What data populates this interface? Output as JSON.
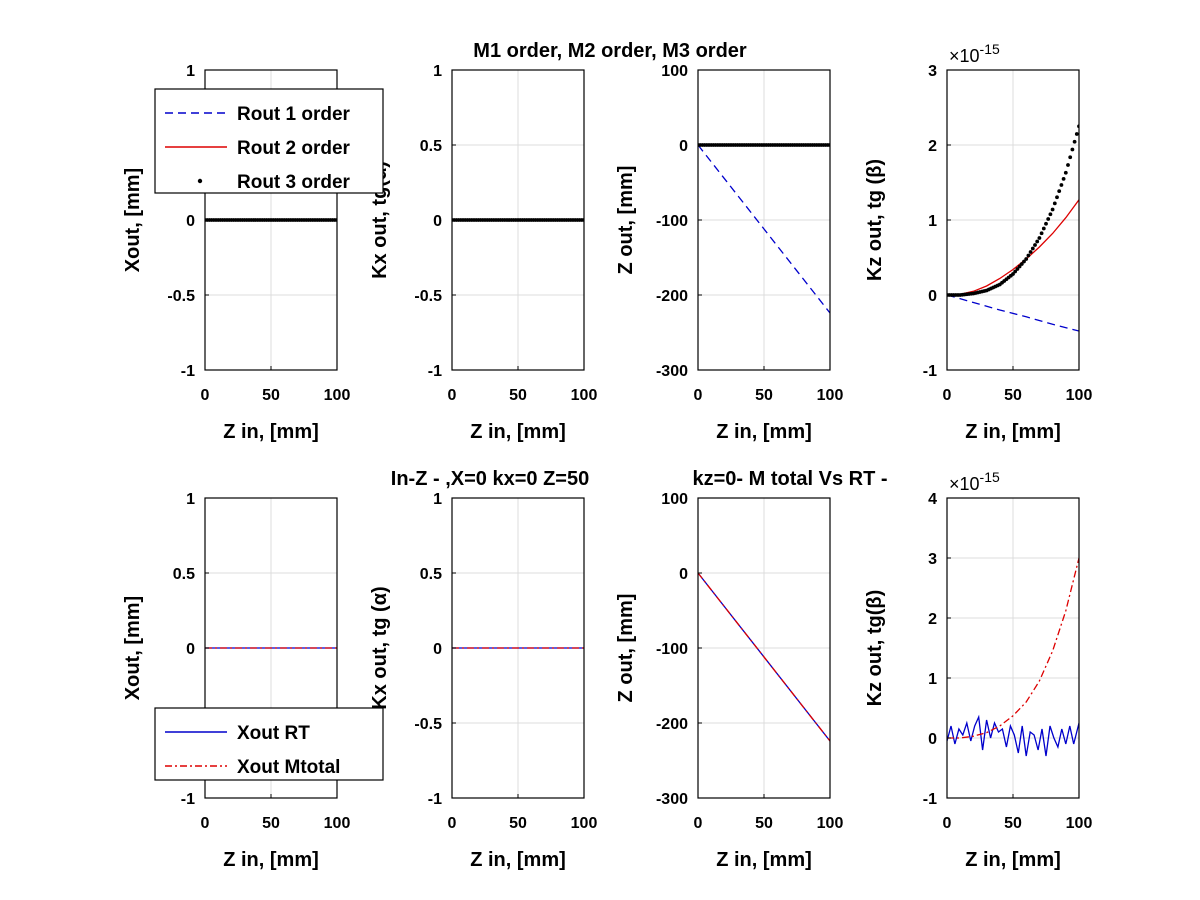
{
  "titles": {
    "top": "M1 order, M2 order, M3 order",
    "bottom_left": "In-Z - ,X=0  kx=0  Z=50",
    "bottom_right": "kz=0- M total Vs RT -"
  },
  "chart_data": [
    {
      "type": "line",
      "xlabel": "Z in, [mm]",
      "ylabel": "Xout, [mm]",
      "xlim": [
        0,
        100
      ],
      "ylim": [
        -1,
        1
      ],
      "x_ticks": [
        "0",
        "50",
        "100"
      ],
      "y_ticks": [
        "-1",
        "-0.5",
        "0",
        "0.5",
        "1"
      ],
      "grid": true,
      "legend_position": "top-left",
      "series": [
        {
          "name": "Rout 1 order",
          "color": "#0000cc",
          "style": "dashed",
          "x": [
            0,
            100
          ],
          "y": [
            0,
            0
          ]
        },
        {
          "name": "Rout 2 order",
          "color": "#dd0000",
          "style": "solid",
          "x": [
            0,
            100
          ],
          "y": [
            0,
            0
          ]
        },
        {
          "name": "Rout 3 order",
          "color": "#000000",
          "style": "dots",
          "x": [
            0,
            100
          ],
          "y": [
            0,
            0
          ]
        }
      ]
    },
    {
      "type": "line",
      "xlabel": "Z in, [mm]",
      "ylabel": "Kx out, tg(α)",
      "xlim": [
        0,
        100
      ],
      "ylim": [
        -1,
        1
      ],
      "x_ticks": [
        "0",
        "50",
        "100"
      ],
      "y_ticks": [
        "-1",
        "-0.5",
        "0",
        "0.5",
        "1"
      ],
      "grid": true,
      "series": [
        {
          "color": "#0000cc",
          "style": "dashed",
          "x": [
            0,
            100
          ],
          "y": [
            0,
            0
          ]
        },
        {
          "color": "#dd0000",
          "style": "solid",
          "x": [
            0,
            100
          ],
          "y": [
            0,
            0
          ]
        },
        {
          "color": "#000000",
          "style": "dots",
          "x": [
            0,
            100
          ],
          "y": [
            0,
            0
          ]
        }
      ]
    },
    {
      "type": "line",
      "xlabel": "Z in, [mm]",
      "ylabel": "Z  out, [mm]",
      "xlim": [
        0,
        100
      ],
      "ylim": [
        -300,
        100
      ],
      "x_ticks": [
        "0",
        "50",
        "100"
      ],
      "y_ticks": [
        "-300",
        "-200",
        "-100",
        "0",
        "100"
      ],
      "grid": true,
      "series": [
        {
          "color": "#0000cc",
          "style": "dashed",
          "x": [
            0,
            50,
            100
          ],
          "y": [
            0,
            -112,
            -224
          ]
        },
        {
          "color": "#dd0000",
          "style": "solid",
          "x": [
            0,
            100
          ],
          "y": [
            0,
            0
          ]
        },
        {
          "color": "#000000",
          "style": "dots",
          "x": [
            0,
            100
          ],
          "y": [
            0,
            0
          ]
        }
      ]
    },
    {
      "type": "line",
      "xlabel": "Z in, [mm]",
      "ylabel": "Kz  out, tg (β)",
      "xlim": [
        0,
        100
      ],
      "ylim": [
        -1,
        3
      ],
      "x_ticks": [
        "0",
        "50",
        "100"
      ],
      "y_ticks": [
        "-1",
        "0",
        "1",
        "2",
        "3"
      ],
      "exponent": "-15",
      "grid": true,
      "series": [
        {
          "color": "#0000cc",
          "style": "dashed",
          "x": [
            0,
            20,
            40,
            60,
            80,
            100
          ],
          "y": [
            0,
            -0.1,
            -0.2,
            -0.29,
            -0.39,
            -0.48
          ]
        },
        {
          "color": "#dd0000",
          "style": "solid",
          "x": [
            0,
            10,
            20,
            30,
            40,
            50,
            60,
            70,
            80,
            90,
            100
          ],
          "y": [
            0,
            0.01,
            0.05,
            0.12,
            0.22,
            0.34,
            0.48,
            0.64,
            0.82,
            1.03,
            1.27
          ]
        },
        {
          "color": "#000000",
          "style": "dots",
          "x": [
            0,
            10,
            20,
            30,
            40,
            50,
            60,
            70,
            80,
            90,
            100
          ],
          "y": [
            0,
            0.0,
            0.02,
            0.06,
            0.14,
            0.28,
            0.48,
            0.76,
            1.14,
            1.63,
            2.25
          ]
        }
      ]
    },
    {
      "type": "line",
      "xlabel": "Z in, [mm]",
      "ylabel": "Xout, [mm]",
      "xlim": [
        0,
        100
      ],
      "ylim": [
        -1,
        1
      ],
      "x_ticks": [
        "0",
        "50",
        "100"
      ],
      "y_ticks": [
        "-1",
        "-0.5",
        "0",
        "0.5",
        "1"
      ],
      "grid": true,
      "legend_position": "bottom-left",
      "series": [
        {
          "name": "Xout RT",
          "color": "#0000cc",
          "style": "solid",
          "x": [
            0,
            100
          ],
          "y": [
            0,
            0
          ]
        },
        {
          "name": "Xout  Mtotal",
          "color": "#dd0000",
          "style": "dashdot",
          "x": [
            0,
            100
          ],
          "y": [
            0,
            0
          ]
        }
      ]
    },
    {
      "type": "line",
      "xlabel": "Z in, [mm]",
      "ylabel": "Kx out,  tg (α)",
      "xlim": [
        0,
        100
      ],
      "ylim": [
        -1,
        1
      ],
      "x_ticks": [
        "0",
        "50",
        "100"
      ],
      "y_ticks": [
        "-1",
        "-0.5",
        "0",
        "0.5",
        "1"
      ],
      "grid": true,
      "series": [
        {
          "color": "#0000cc",
          "style": "solid",
          "x": [
            0,
            100
          ],
          "y": [
            0,
            0
          ]
        },
        {
          "color": "#dd0000",
          "style": "dashdot",
          "x": [
            0,
            100
          ],
          "y": [
            0,
            0
          ]
        }
      ]
    },
    {
      "type": "line",
      "xlabel": "Z in, [mm]",
      "ylabel": "Z out, [mm]",
      "xlim": [
        0,
        100
      ],
      "ylim": [
        -300,
        100
      ],
      "x_ticks": [
        "0",
        "50",
        "100"
      ],
      "y_ticks": [
        "-300",
        "-200",
        "-100",
        "0",
        "100"
      ],
      "grid": true,
      "series": [
        {
          "color": "#0000cc",
          "style": "solid",
          "x": [
            0,
            100
          ],
          "y": [
            0,
            -224
          ]
        },
        {
          "color": "#dd0000",
          "style": "dashdot",
          "x": [
            0,
            100
          ],
          "y": [
            0,
            -224
          ]
        }
      ]
    },
    {
      "type": "line",
      "xlabel": "Z in, [mm]",
      "ylabel": "Kz out, tg(β)",
      "xlim": [
        0,
        100
      ],
      "ylim": [
        -1,
        4
      ],
      "x_ticks": [
        "0",
        "50",
        "100"
      ],
      "y_ticks": [
        "-1",
        "0",
        "1",
        "2",
        "3",
        "4"
      ],
      "exponent": "-15",
      "grid": true,
      "series": [
        {
          "color": "#0000cc",
          "style": "solid",
          "x": [
            0,
            3,
            6,
            9,
            12,
            15,
            18,
            21,
            24,
            27,
            30,
            33,
            36,
            39,
            42,
            45,
            48,
            51,
            54,
            57,
            60,
            63,
            66,
            69,
            72,
            75,
            78,
            81,
            84,
            87,
            90,
            93,
            96,
            100
          ],
          "y": [
            -0.05,
            0.2,
            -0.1,
            0.15,
            0.05,
            0.25,
            -0.05,
            0.2,
            0.35,
            -0.2,
            0.3,
            0.0,
            0.25,
            0.1,
            0.15,
            -0.15,
            0.2,
            0.05,
            -0.25,
            0.2,
            -0.3,
            0.1,
            0.05,
            -0.2,
            0.15,
            -0.3,
            0.2,
            0.0,
            -0.15,
            0.15,
            -0.1,
            0.2,
            -0.1,
            0.25
          ]
        },
        {
          "color": "#dd0000",
          "style": "dashdot",
          "x": [
            0,
            10,
            20,
            30,
            40,
            50,
            60,
            70,
            80,
            90,
            100
          ],
          "y": [
            0,
            0.0,
            0.03,
            0.09,
            0.2,
            0.37,
            0.6,
            0.95,
            1.45,
            2.12,
            3.0
          ]
        }
      ]
    }
  ]
}
